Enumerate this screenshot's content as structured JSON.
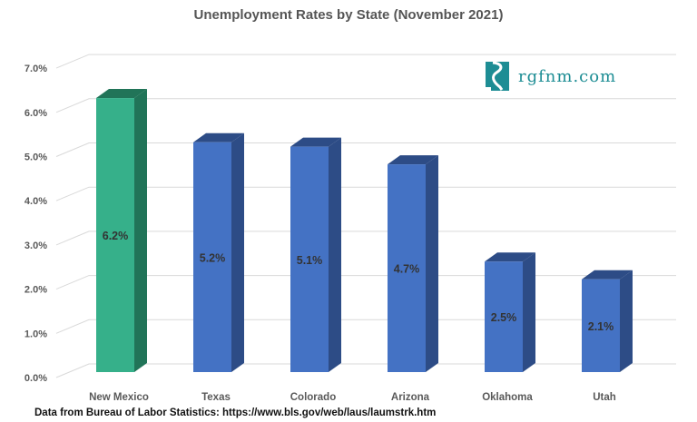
{
  "chart_data": {
    "type": "bar",
    "title": "Unemployment Rates by State (November 2021)",
    "categories": [
      "New Mexico",
      "Texas",
      "Colorado",
      "Arizona",
      "Oklahoma",
      "Utah"
    ],
    "values": [
      6.2,
      5.2,
      5.1,
      4.7,
      2.5,
      2.1
    ],
    "data_labels": [
      "6.2%",
      "5.2%",
      "5.1%",
      "4.7%",
      "2.5%",
      "2.1%"
    ],
    "yticks": [
      "0.0%",
      "1.0%",
      "2.0%",
      "3.0%",
      "4.0%",
      "5.0%",
      "6.0%",
      "7.0%"
    ],
    "ylim": [
      0,
      7
    ],
    "grid": true,
    "three_d": true,
    "colors": {
      "highlight": "#36b08a",
      "highlight_side": "#217458",
      "default": "#4472c4",
      "default_side": "#2d4c86"
    }
  },
  "logo": {
    "text": "rgfnm.com",
    "color": "#1d8d94"
  },
  "source": "Data from Bureau of Labor Statistics: https://www.bls.gov/web/laus/laumstrk.htm"
}
